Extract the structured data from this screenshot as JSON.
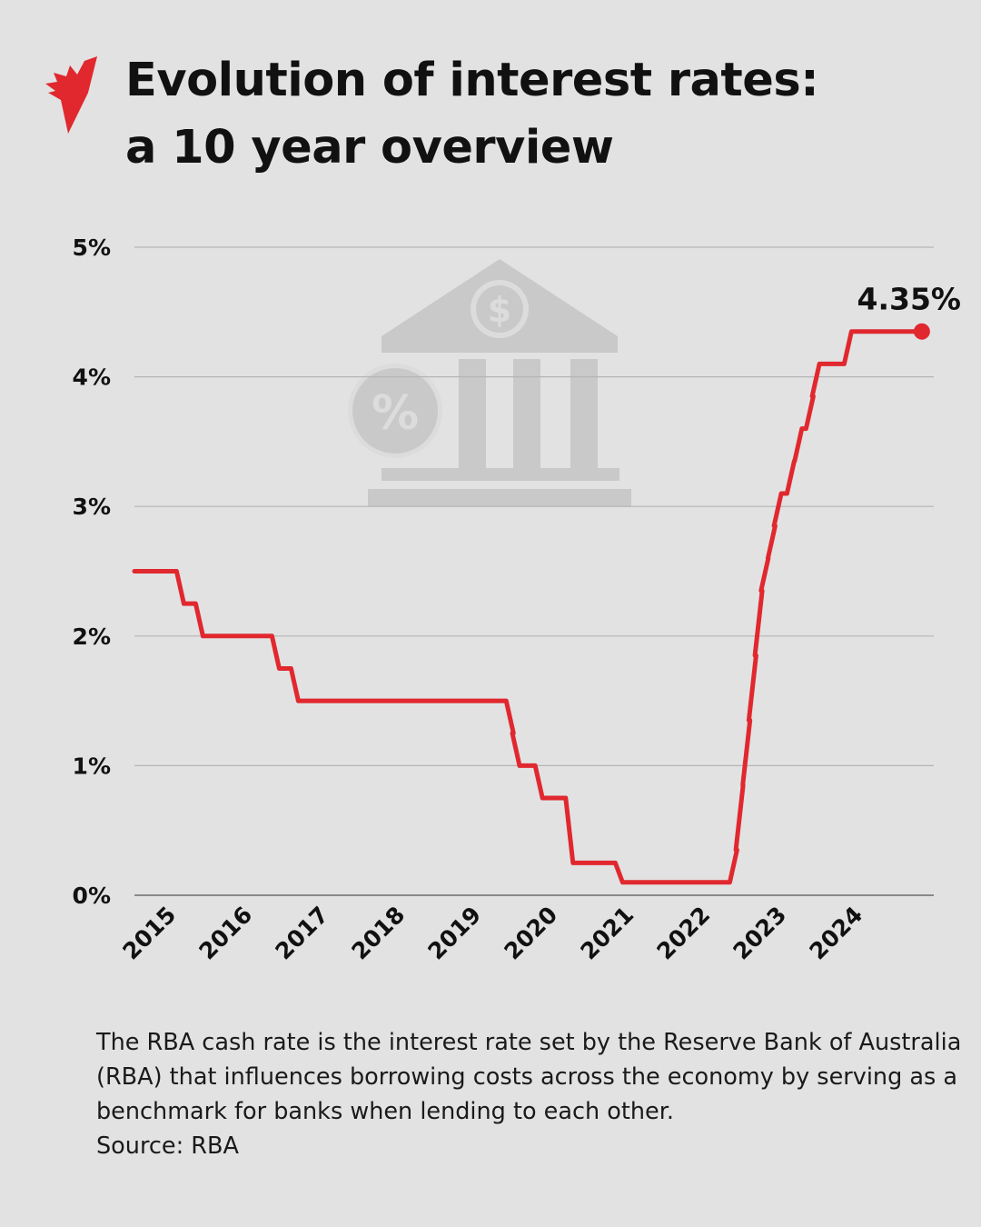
{
  "header": {
    "title_line1": "Evolution of interest rates:",
    "title_line2": "a 10 year overview",
    "logo_icon": "sbs-logo-icon"
  },
  "chart_data": {
    "type": "line",
    "title": "Evolution of interest rates: a 10 year overview",
    "xlabel": "",
    "ylabel": "",
    "x_tick_labels": [
      "2015",
      "2016",
      "2017",
      "2018",
      "2019",
      "2020",
      "2021",
      "2022",
      "2023",
      "2024"
    ],
    "y_tick_labels": [
      "0%",
      "1%",
      "2%",
      "3%",
      "4%",
      "5%"
    ],
    "y_ticks": [
      0,
      1,
      2,
      3,
      4,
      5
    ],
    "ylim": [
      0,
      5
    ],
    "xlim": [
      2014.5,
      2024.9
    ],
    "grid": "horizontal",
    "line_color": "#e0282e",
    "step": true,
    "x": [
      2014.5,
      2015.1,
      2015.35,
      2016.35,
      2016.6,
      2019.42,
      2019.5,
      2019.8,
      2020.2,
      2020.85,
      2022.35,
      2022.43,
      2022.52,
      2022.6,
      2022.68,
      2022.76,
      2022.85,
      2022.93,
      2023.1,
      2023.2,
      2023.35,
      2023.43,
      2023.85,
      2024.82
    ],
    "values": [
      2.5,
      2.25,
      2.0,
      1.75,
      1.5,
      1.25,
      1.0,
      0.75,
      0.25,
      0.1,
      0.35,
      0.85,
      1.35,
      1.85,
      2.35,
      2.6,
      2.85,
      3.1,
      3.35,
      3.6,
      3.85,
      4.1,
      4.35,
      4.35
    ],
    "end_label": "4.35%",
    "background_icon": "bank-percent-icon"
  },
  "footer": {
    "description": "The RBA cash rate is the interest rate set by the Reserve Bank of Australia (RBA) that influences borrowing costs across the economy by serving as a benchmark for banks when lending to each other.",
    "source": "Source: RBA"
  }
}
